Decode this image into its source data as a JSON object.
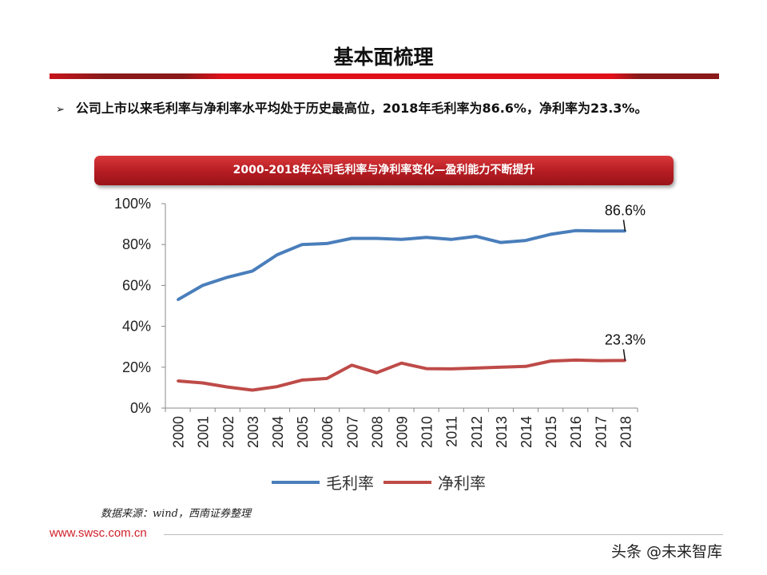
{
  "slide": {
    "title": "基本面梳理",
    "bullet": "公司上市以来毛利率与净利率水平均处于历史最高位，2018年毛利率为86.6%，净利率为23.3%。",
    "source": "数据来源：wind，西南证券整理",
    "url": "www.swsc.com.cn",
    "watermark": "头条 @未来智库"
  },
  "chart_data": {
    "type": "line",
    "title": "2000-2018年公司毛利率与净利率变化—盈利能力不断提升",
    "categories": [
      "2000",
      "2001",
      "2002",
      "2003",
      "2004",
      "2005",
      "2006",
      "2007",
      "2008",
      "2009",
      "2010",
      "2011",
      "2012",
      "2013",
      "2014",
      "2015",
      "2016",
      "2017",
      "2018"
    ],
    "y_ticks": [
      "0%",
      "20%",
      "40%",
      "60%",
      "80%",
      "100%"
    ],
    "ylim": [
      0,
      100
    ],
    "grid": false,
    "legend_position": "bottom",
    "series": [
      {
        "name": "毛利率",
        "color": "#4a7ebb",
        "values": [
          53,
          60,
          64,
          67,
          75,
          80,
          80.5,
          83,
          83,
          82.5,
          83.5,
          82.5,
          84,
          81,
          82,
          85,
          86.8,
          86.6,
          86.6
        ]
      },
      {
        "name": "净利率",
        "color": "#be4b48",
        "values": [
          13.3,
          12.3,
          10.3,
          8.8,
          10.5,
          13.7,
          14.5,
          21,
          17.3,
          22,
          19.3,
          19.2,
          19.6,
          20,
          20.4,
          23,
          23.5,
          23.2,
          23.3
        ]
      }
    ],
    "annotations": [
      {
        "series": 0,
        "text": "86.6%"
      },
      {
        "series": 1,
        "text": "23.3%"
      }
    ]
  }
}
